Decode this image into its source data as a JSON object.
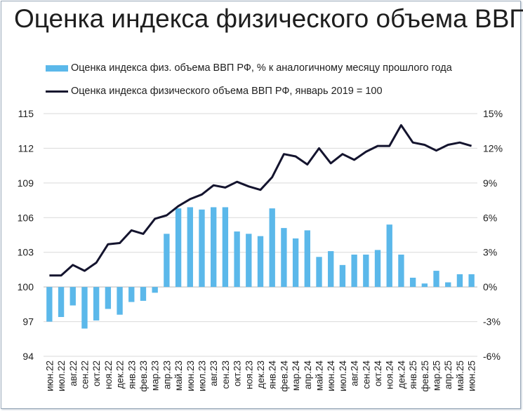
{
  "title": "Оценка индекса физического объема ВВП",
  "legend": {
    "bar_label": "Оценка индекса физ. объема ВВП РФ, % к аналогичному месяцу прошлого года",
    "line_label": "Оценка индекса физического объема ВВП РФ, январь 2019 = 100"
  },
  "colors": {
    "bar": "#5bb8ea",
    "line": "#14142e",
    "gridline": "#d9d9d9"
  },
  "chart_data": {
    "type": "bar",
    "title": "Оценка индекса физического объема ВВП",
    "categories": [
      "июн.22",
      "июл.22",
      "авг.22",
      "сен.22",
      "окт.22",
      "ноя.22",
      "дек.22",
      "янв.23",
      "фев.23",
      "мар.23",
      "апр.23",
      "май.23",
      "июн.23",
      "июл.23",
      "авг.23",
      "сен.23",
      "окт.23",
      "ноя.23",
      "дек.23",
      "янв.24",
      "фев.24",
      "мар.24",
      "апр.24",
      "май.24",
      "июн.24",
      "июл.24",
      "авг.24",
      "сен.24",
      "окт.24",
      "ноя.24",
      "дек.24",
      "янв.25",
      "фев.25",
      "мар.25",
      "апр.25",
      "май.25",
      "июн.25"
    ],
    "series": [
      {
        "name": "Оценка индекса физ. объема ВВП РФ, % к аналогичному месяцу прошлого года",
        "type": "bar",
        "axis": "right",
        "values": [
          -3.0,
          -2.6,
          -1.6,
          -3.6,
          -2.9,
          -1.9,
          -2.4,
          -1.3,
          -1.2,
          -0.5,
          4.6,
          6.8,
          6.9,
          6.7,
          6.9,
          6.9,
          4.8,
          4.6,
          4.4,
          6.8,
          5.1,
          4.2,
          4.9,
          2.6,
          3.1,
          1.9,
          2.8,
          2.8,
          3.2,
          5.4,
          2.8,
          0.8,
          0.3,
          1.4,
          0.4,
          1.1,
          1.1
        ]
      },
      {
        "name": "Оценка индекса физического объема ВВП РФ, январь 2019 = 100",
        "type": "line",
        "axis": "left",
        "values": [
          101.0,
          101.0,
          101.9,
          101.4,
          102.1,
          103.7,
          103.8,
          104.9,
          104.6,
          105.9,
          106.2,
          107.0,
          107.6,
          108.0,
          108.8,
          108.6,
          109.1,
          108.7,
          108.4,
          109.5,
          111.5,
          111.3,
          110.6,
          112.0,
          110.7,
          111.5,
          111.0,
          111.7,
          112.2,
          112.2,
          114.0,
          112.5,
          112.3,
          111.8,
          112.3,
          112.5,
          112.2
        ]
      }
    ],
    "y_left": {
      "ylim": [
        94,
        115
      ],
      "ticks": [
        "94",
        "97",
        "100",
        "103",
        "106",
        "109",
        "112",
        "115"
      ]
    },
    "y_right": {
      "ylim": [
        -6,
        15
      ],
      "ticks": [
        "-6%",
        "-3%",
        "0%",
        "3%",
        "6%",
        "9%",
        "12%",
        "15%"
      ]
    },
    "grid": true,
    "legend_position": "top-left"
  }
}
